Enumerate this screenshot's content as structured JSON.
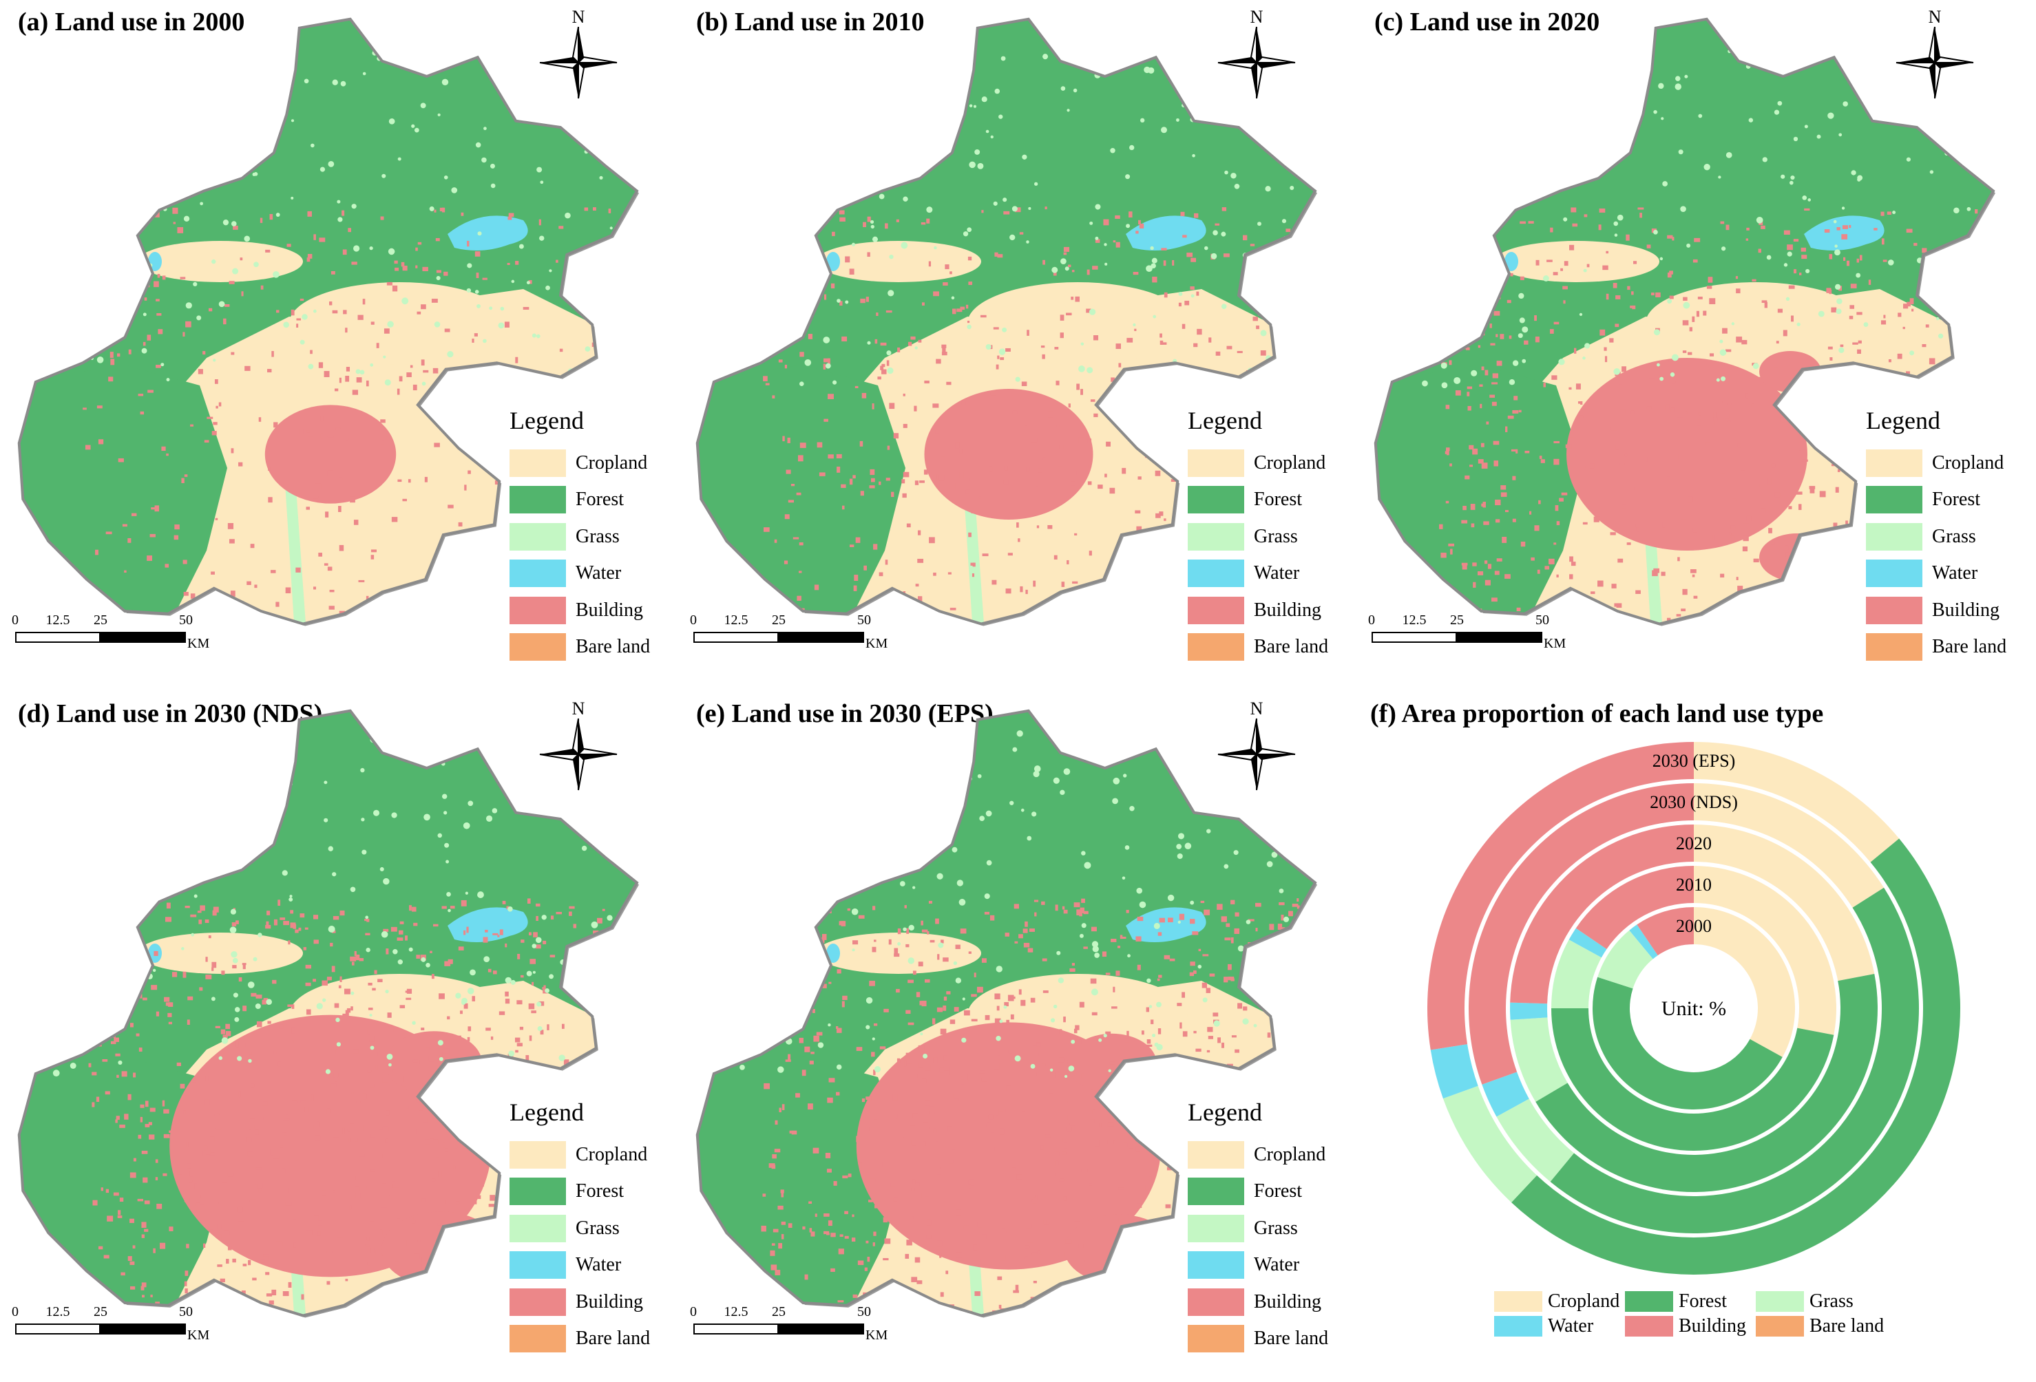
{
  "legend": {
    "title": "Legend",
    "items": [
      {
        "label": "Cropland",
        "color": "#fde9bf"
      },
      {
        "label": "Forest",
        "color": "#52b56d"
      },
      {
        "label": "Grass",
        "color": "#c4f7c4"
      },
      {
        "label": "Water",
        "color": "#6fdcf0"
      },
      {
        "label": "Building",
        "color": "#ec8789"
      },
      {
        "label": "Bare land",
        "color": "#f5a76e"
      }
    ]
  },
  "north_arrow": {
    "label": "N",
    "icon": "compass-rose-icon"
  },
  "scalebar": {
    "ticks": [
      "0",
      "12.5",
      "25",
      "50"
    ],
    "unit": "KM"
  },
  "maps": [
    {
      "id": "a",
      "title": "(a) Land use in 2000",
      "building_level": 0.12
    },
    {
      "id": "b",
      "title": "(b) Land use in 2010",
      "building_level": 0.25
    },
    {
      "id": "c",
      "title": "(c) Land use in 2020",
      "building_level": 0.5
    },
    {
      "id": "d",
      "title": "(d) Land use in 2030 (NDS)",
      "building_level": 0.78
    },
    {
      "id": "e",
      "title": "(e) Land use in 2030 (EPS)",
      "building_level": 0.72
    }
  ],
  "chart_data": {
    "type": "donut",
    "title": "(f) Area proportion of each land use type",
    "center_label": "Unit: %",
    "categories": [
      "Cropland",
      "Forest",
      "Grass",
      "Water",
      "Building",
      "Bare land"
    ],
    "colors": [
      "#fde9bf",
      "#52b56d",
      "#c4f7c4",
      "#6fdcf0",
      "#ec8789",
      "#f5a76e"
    ],
    "rings": [
      {
        "label": "2000",
        "values": [
          33,
          47,
          9,
          1.5,
          9.5,
          0
        ]
      },
      {
        "label": "2010",
        "values": [
          28,
          47,
          8,
          1.5,
          15.5,
          0
        ]
      },
      {
        "label": "2020",
        "values": [
          22,
          44.5,
          7.5,
          1.5,
          24.5,
          0
        ]
      },
      {
        "label": "2030 (NDS)",
        "values": [
          16,
          45,
          6,
          2.5,
          30.5,
          0
        ]
      },
      {
        "label": "2030 (EPS)",
        "values": [
          14,
          48,
          7.5,
          3,
          27.5,
          0
        ]
      }
    ],
    "legend_order": [
      "Cropland",
      "Forest",
      "Grass",
      "Water",
      "Building",
      "Bare land"
    ]
  }
}
